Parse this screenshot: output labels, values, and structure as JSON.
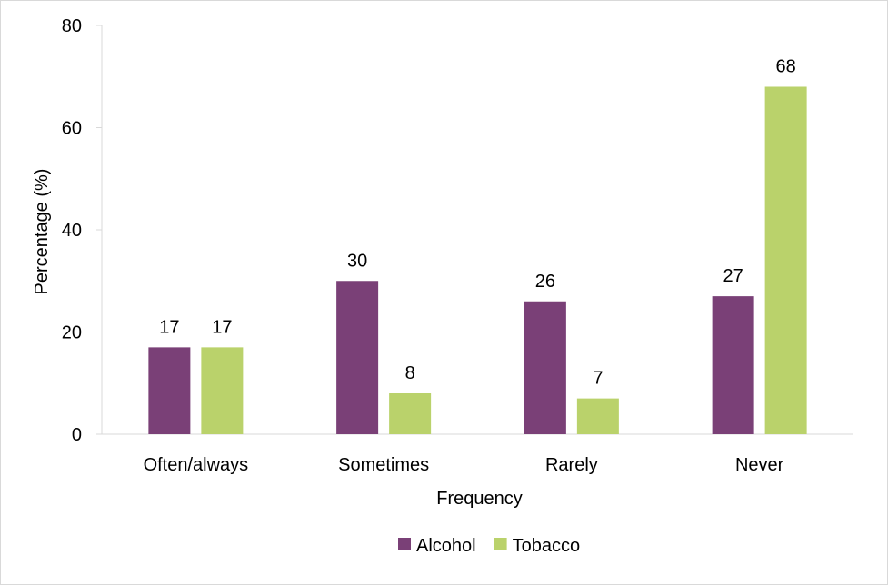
{
  "chart_data": {
    "type": "bar",
    "title": "",
    "xlabel": "Frequency",
    "ylabel": "Percentage (%)",
    "ylim": [
      0,
      80
    ],
    "yticks": [
      0,
      20,
      40,
      60,
      80
    ],
    "grid": false,
    "legend_position": "bottom",
    "categories": [
      "Often/always",
      "Sometimes",
      "Rarely",
      "Never"
    ],
    "series": [
      {
        "name": "Alcohol",
        "color": "#7a4077",
        "values": [
          17,
          30,
          26,
          27
        ]
      },
      {
        "name": "Tobacco",
        "color": "#bad26b",
        "values": [
          17,
          8,
          7,
          68
        ]
      }
    ]
  }
}
